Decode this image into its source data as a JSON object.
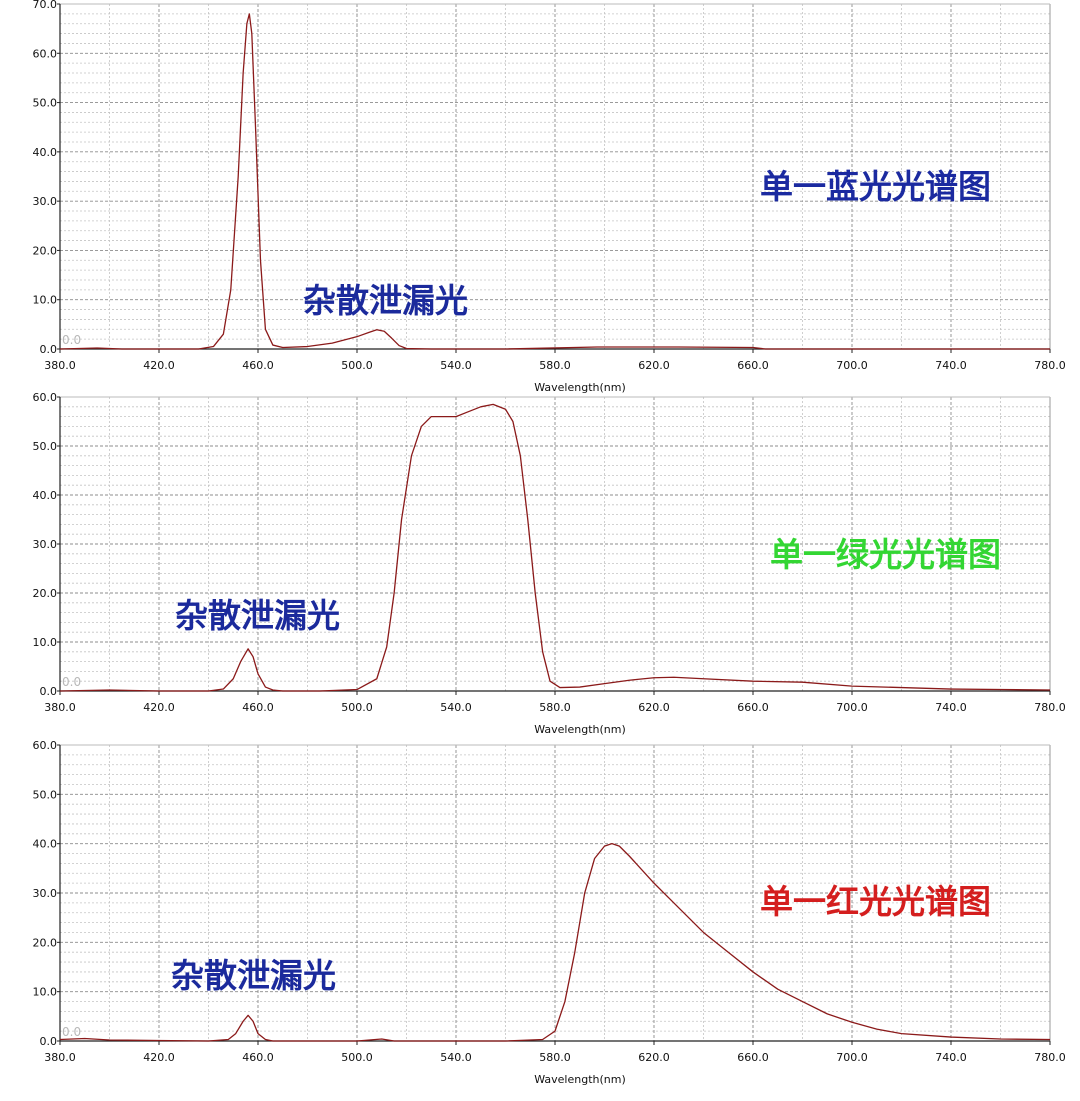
{
  "chart_data": [
    {
      "type": "line",
      "title": "单一蓝光光谱图",
      "title_color": "#1b2aa0",
      "annotation": "杂散泄漏光",
      "xlabel": "Wavelength(nm)",
      "origin_label": "0.0",
      "xlim": [
        380,
        780
      ],
      "ylim": [
        0,
        70
      ],
      "x_ticks": [
        "380.0",
        "420.0",
        "460.0",
        "500.0",
        "540.0",
        "580.0",
        "620.0",
        "660.0",
        "700.0",
        "740.0",
        "780.0"
      ],
      "y_ticks": [
        "0.0",
        "10.0",
        "20.0",
        "30.0",
        "40.0",
        "50.0",
        "60.0",
        "70.0"
      ],
      "series": [
        {
          "color": "#8b1a1a",
          "x": [
            380,
            395,
            405,
            420,
            436,
            442,
            446,
            449,
            452,
            454,
            455.5,
            456.5,
            457.5,
            459,
            461,
            463,
            466,
            470,
            480,
            490,
            500,
            505,
            508,
            511,
            514,
            517,
            520,
            530,
            560,
            597,
            630,
            660,
            665,
            700,
            780
          ],
          "y": [
            0,
            0.2,
            0,
            0,
            0,
            0.5,
            3,
            12,
            35,
            56,
            66,
            68,
            64,
            45,
            18,
            4,
            0.8,
            0.3,
            0.5,
            1.2,
            2.5,
            3.4,
            3.9,
            3.6,
            2.2,
            0.7,
            0.1,
            0,
            0,
            0.4,
            0.4,
            0.3,
            0,
            0,
            0
          ]
        }
      ]
    },
    {
      "type": "line",
      "title": "单一绿光光谱图",
      "title_color": "#33d633",
      "annotation": "杂散泄漏光",
      "xlabel": "Wavelength(nm)",
      "origin_label": "0.0",
      "xlim": [
        380,
        780
      ],
      "ylim": [
        0,
        60
      ],
      "x_ticks": [
        "380.0",
        "420.0",
        "460.0",
        "500.0",
        "540.0",
        "580.0",
        "620.0",
        "660.0",
        "700.0",
        "740.0",
        "780.0"
      ],
      "y_ticks": [
        "0.0",
        "10.0",
        "20.0",
        "30.0",
        "40.0",
        "50.0",
        "60.0"
      ],
      "series": [
        {
          "color": "#8b1a1a",
          "x": [
            380,
            400,
            420,
            440,
            446,
            450,
            453,
            456,
            458,
            460,
            463,
            466,
            470,
            485,
            500,
            508,
            512,
            515,
            518,
            522,
            526,
            530,
            535,
            540,
            545,
            550,
            555,
            560,
            563,
            566,
            569,
            572,
            575,
            578,
            582,
            590,
            600,
            610,
            620,
            628,
            640,
            660,
            680,
            700,
            720,
            740,
            760,
            780
          ],
          "y": [
            0,
            0.2,
            0,
            0,
            0.4,
            2.5,
            6,
            8.6,
            7,
            3.5,
            0.8,
            0.2,
            0,
            0,
            0.3,
            2.5,
            9,
            20,
            35,
            48,
            54,
            56,
            56,
            56,
            57,
            58,
            58.5,
            57.5,
            55,
            48,
            35,
            20,
            8,
            2,
            0.7,
            0.8,
            1.5,
            2.2,
            2.7,
            2.8,
            2.5,
            2,
            1.8,
            1,
            0.7,
            0.4,
            0.3,
            0.2
          ]
        }
      ]
    },
    {
      "type": "line",
      "title": "单一红光光谱图",
      "title_color": "#d41e1e",
      "annotation": "杂散泄漏光",
      "xlabel": "Wavelength(nm)",
      "origin_label": "0.0",
      "xlim": [
        380,
        780
      ],
      "ylim": [
        0,
        60
      ],
      "x_ticks": [
        "380.0",
        "420.0",
        "460.0",
        "500.0",
        "540.0",
        "580.0",
        "620.0",
        "660.0",
        "700.0",
        "740.0",
        "780.0"
      ],
      "y_ticks": [
        "0.0",
        "10.0",
        "20.0",
        "30.0",
        "40.0",
        "50.0",
        "60.0"
      ],
      "series": [
        {
          "color": "#8b1a1a",
          "x": [
            380,
            390,
            400,
            420,
            440,
            448,
            451,
            454,
            456,
            458,
            460,
            463,
            466,
            470,
            480,
            500,
            510,
            515,
            560,
            575,
            580,
            584,
            588,
            592,
            596,
            600,
            603,
            606,
            610,
            620,
            630,
            640,
            650,
            660,
            670,
            680,
            690,
            700,
            710,
            720,
            740,
            760,
            780
          ],
          "y": [
            0.3,
            0.5,
            0.2,
            0.1,
            0,
            0.3,
            1.5,
            4,
            5.2,
            4,
            1.5,
            0.3,
            0,
            0,
            0,
            0,
            0.4,
            0,
            0,
            0.3,
            2,
            8,
            18,
            30,
            37,
            39.5,
            40,
            39.5,
            37.5,
            32,
            27,
            22,
            18,
            14,
            10.5,
            8,
            5.5,
            3.8,
            2.4,
            1.5,
            0.8,
            0.4,
            0.3
          ]
        }
      ]
    }
  ]
}
